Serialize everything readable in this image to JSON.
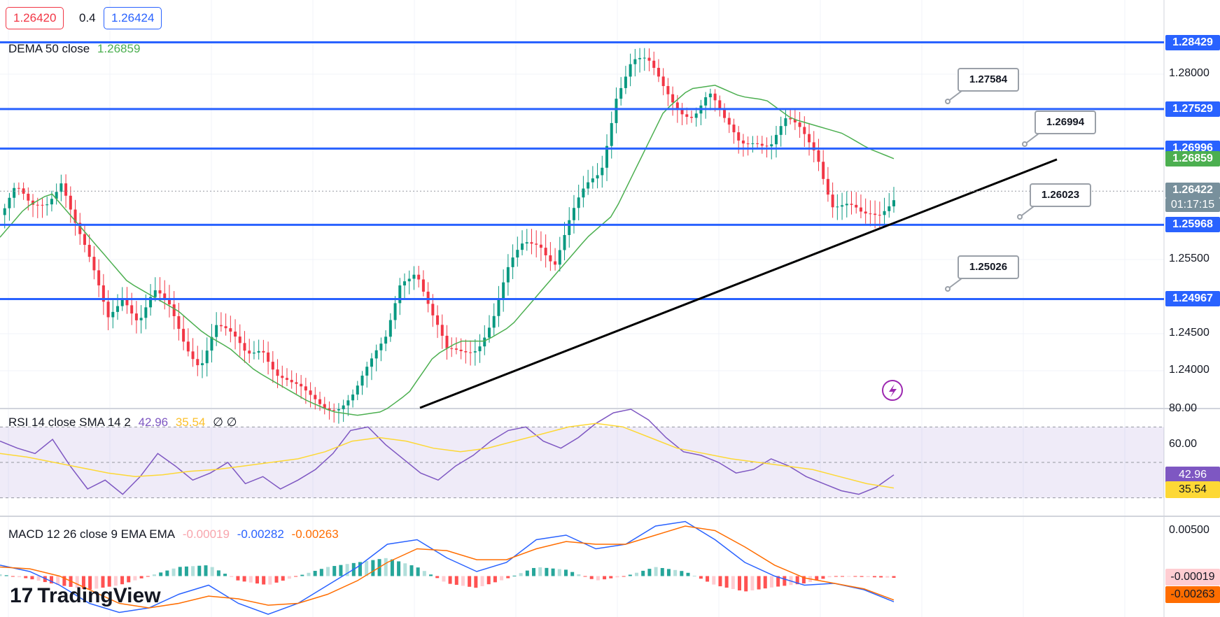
{
  "header": {
    "bid": "1.26420",
    "spread": "0.4",
    "ask": "1.26424"
  },
  "legend": {
    "dema_label": "DEMA 50 close",
    "dema_value": "1.26859",
    "rsi_label": "RSI 14 close SMA 14 2",
    "rsi_value": "42.96",
    "rsi_sma_value": "35.54",
    "rsi_extra": "∅ ∅",
    "macd_label": "MACD 12 26 close 9 EMA EMA",
    "macd_hist": "-0.00019",
    "macd_line": "-0.00282",
    "macd_signal": "-0.00263"
  },
  "brand": {
    "name": "TradingView",
    "mark": "17"
  },
  "colors": {
    "level_line": "#2962ff",
    "trendline": "#000000",
    "up": "#089981",
    "down": "#f23645",
    "dema": "#4caf50",
    "rsi": "#7e57c2",
    "rsi_sma": "#fdd835",
    "macd": "#2962ff",
    "signal": "#ff6d00"
  },
  "chart_data": [
    {
      "type": "candlestick",
      "title": "",
      "y_ticks": [
        "1.28000",
        "1.25500",
        "1.24500",
        "1.24000"
      ],
      "ylim": [
        1.235,
        1.29
      ],
      "levels": [
        1.28429,
        1.27529,
        1.26996,
        1.25968,
        1.24967
      ],
      "level_labels": [
        "1.28429",
        "1.27529",
        "1.26996",
        "1.25968",
        "1.24967"
      ],
      "current_price": "1.26422",
      "countdown": "01:17:15",
      "dema_label": "1.26859",
      "callouts": [
        "1.27584",
        "1.26994",
        "1.26023",
        "1.25026"
      ],
      "trendline": [
        [
          0.0,
          1.235
        ],
        [
          1.0,
          1.2685
        ]
      ],
      "close_path": [
        1.261,
        1.264,
        1.2615,
        1.263,
        1.2665,
        1.259,
        1.253,
        1.247,
        1.251,
        1.247,
        1.25,
        1.248,
        1.244,
        1.2415,
        1.246,
        1.244,
        1.242,
        1.244,
        1.24,
        1.2375,
        1.236,
        1.2355,
        1.236,
        1.237,
        1.24,
        1.244,
        1.253,
        1.254,
        1.247,
        1.242,
        1.243,
        1.244,
        1.247,
        1.253,
        1.257,
        1.258,
        1.255,
        1.26,
        1.264,
        1.267,
        1.278,
        1.282,
        1.281,
        1.278,
        1.276,
        1.275,
        1.277,
        1.273,
        1.271,
        1.272,
        1.2705,
        1.273,
        1.272,
        1.27,
        1.263,
        1.262,
        1.26,
        1.261,
        1.2642
      ],
      "dema_path": [
        1.258,
        1.262,
        1.264,
        1.26,
        1.256,
        1.252,
        1.25,
        1.248,
        1.245,
        1.243,
        1.24,
        1.238,
        1.236,
        1.2345,
        1.234,
        1.2345,
        1.237,
        1.242,
        1.244,
        1.244,
        1.246,
        1.25,
        1.254,
        1.258,
        1.261,
        1.268,
        1.275,
        1.278,
        1.2785,
        1.277,
        1.2765,
        1.274,
        1.273,
        1.272,
        1.27,
        1.2686
      ]
    },
    {
      "type": "line",
      "title": "",
      "y_ticks": [
        "80.00",
        "60.00"
      ],
      "ylim": [
        20,
        80
      ],
      "bands": [
        30,
        70
      ],
      "rsi": [
        62,
        58,
        55,
        63,
        48,
        35,
        40,
        32,
        42,
        55,
        48,
        40,
        44,
        50,
        38,
        42,
        35,
        40,
        46,
        55,
        68,
        70,
        60,
        52,
        44,
        40,
        48,
        54,
        62,
        68,
        70,
        62,
        58,
        64,
        72,
        78,
        80,
        74,
        64,
        56,
        54,
        50,
        44,
        46,
        52,
        48,
        42,
        38,
        34,
        32,
        36,
        42.96
      ],
      "sma": [
        55,
        53,
        50,
        47,
        44,
        42,
        43,
        45,
        46,
        48,
        50,
        52,
        56,
        62,
        64,
        62,
        58,
        56,
        58,
        62,
        66,
        70,
        72,
        70,
        64,
        58,
        55,
        52,
        50,
        48,
        46,
        42,
        38,
        35.54
      ],
      "last_values": [
        "42.96",
        "35.54"
      ]
    },
    {
      "type": "line",
      "title": "",
      "y_ticks": [
        "0.00500"
      ],
      "ylim": [
        -0.0045,
        0.0065
      ],
      "macd": [
        0.0012,
        0.0005,
        -0.001,
        -0.003,
        -0.004,
        -0.0035,
        -0.002,
        -0.001,
        -0.003,
        -0.0042,
        -0.003,
        -0.001,
        0.001,
        0.0035,
        0.004,
        0.002,
        0.0005,
        0.0015,
        0.004,
        0.0045,
        0.003,
        0.0035,
        0.0055,
        0.006,
        0.004,
        0.0015,
        0.0,
        -0.001,
        -0.0008,
        -0.0015,
        -0.00282
      ],
      "signal": [
        0.001,
        0.0008,
        0.0,
        -0.0015,
        -0.003,
        -0.0035,
        -0.003,
        -0.0022,
        -0.0025,
        -0.0032,
        -0.003,
        -0.002,
        -0.0005,
        0.0015,
        0.003,
        0.0028,
        0.0018,
        0.0018,
        0.003,
        0.0038,
        0.0035,
        0.0035,
        0.0045,
        0.0055,
        0.005,
        0.0032,
        0.0012,
        -0.0002,
        -0.0008,
        -0.0014,
        -0.00263
      ],
      "hist_path": [
        0.0002,
        -0.0003,
        -0.001,
        -0.0015,
        -0.001,
        0.0,
        0.001,
        0.0012,
        -0.0005,
        -0.001,
        0.0,
        0.001,
        0.0015,
        0.002,
        0.001,
        -0.0008,
        -0.0013,
        -0.0003,
        0.001,
        0.0007,
        -0.0005,
        0.0,
        0.001,
        0.0005,
        -0.001,
        -0.0017,
        -0.0012,
        -0.0008,
        0.0,
        -0.0001,
        -0.00019
      ],
      "last_values": [
        "-0.00019",
        "-0.00263"
      ]
    }
  ]
}
